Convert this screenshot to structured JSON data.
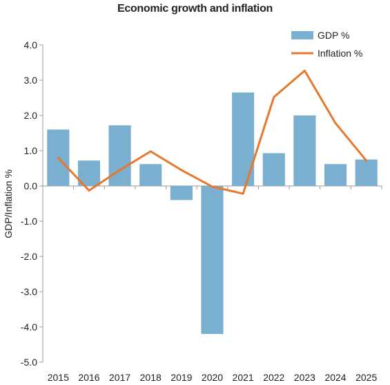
{
  "chart_data": {
    "type": "bar",
    "title": "Economic growth and inflation",
    "xlabel": "",
    "ylabel": "GDP/Inflation %",
    "categories": [
      "2015",
      "2016",
      "2017",
      "2018",
      "2019",
      "2020",
      "2021",
      "2022",
      "2023",
      "2024",
      "2025"
    ],
    "ylim": [
      -5.0,
      4.0
    ],
    "yticks": [
      "4.0",
      "3.0",
      "2.0",
      "1.0",
      "0.0",
      "-1.0",
      "-2.0",
      "-3.0",
      "-4.0",
      "-5.0"
    ],
    "grid": false,
    "legend_position": "top-right",
    "series": [
      {
        "name": "GDP %",
        "type": "bar",
        "color": "#7bafd0",
        "values": [
          1.6,
          0.72,
          1.72,
          0.62,
          -0.4,
          -4.2,
          2.65,
          0.93,
          2.0,
          0.62,
          0.75
        ]
      },
      {
        "name": "Inflation %",
        "type": "line",
        "color": "#e8772e",
        "values": [
          0.8,
          -0.13,
          0.45,
          0.98,
          0.45,
          -0.02,
          -0.22,
          2.52,
          3.27,
          1.78,
          0.72
        ]
      }
    ]
  }
}
